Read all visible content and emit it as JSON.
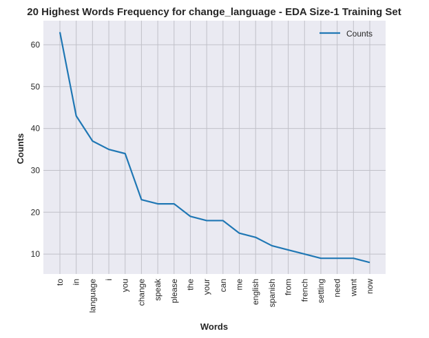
{
  "chart_data": {
    "type": "line",
    "title": "20 Highest Words Frequency for change_language - EDA Size-1 Training Set",
    "xlabel": "Words",
    "ylabel": "Counts",
    "categories": [
      "to",
      "in",
      "language",
      "i",
      "you",
      "change",
      "speak",
      "please",
      "the",
      "your",
      "can",
      "me",
      "english",
      "spanish",
      "from",
      "french",
      "setting",
      "need",
      "want",
      "now"
    ],
    "series": [
      {
        "name": "Counts",
        "values": [
          63,
          43,
          37,
          35,
          34,
          23,
          22,
          22,
          19,
          18,
          18,
          15,
          14,
          12,
          11,
          10,
          9,
          9,
          9,
          8
        ],
        "color": "#1f77b4"
      }
    ],
    "yticks": [
      10,
      20,
      30,
      40,
      50,
      60
    ],
    "ylim": [
      5.25,
      65.75
    ],
    "grid": true,
    "legend_position": "top-right",
    "background_color": "#eaeaf2",
    "grid_color": "#c0c0c8"
  }
}
